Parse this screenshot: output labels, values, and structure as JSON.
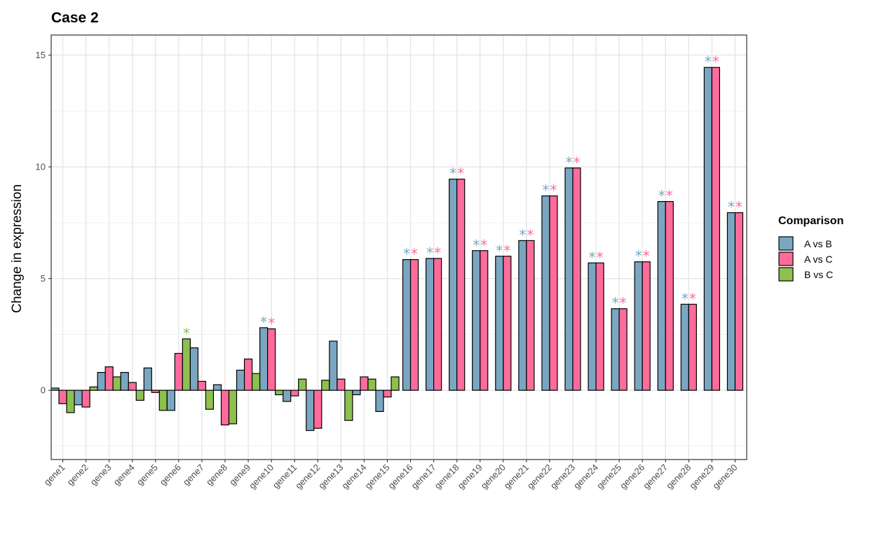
{
  "chart_data": {
    "type": "bar",
    "title": "Case 2",
    "xlabel": "",
    "ylabel": "Change in expression",
    "ylim": [
      -3.1,
      15.9
    ],
    "yticks": [
      0,
      5,
      10,
      15
    ],
    "grid": true,
    "legend_title": "Comparison",
    "legend_position": "right",
    "categories": [
      "gene1",
      "gene2",
      "gene3",
      "gene4",
      "gene5",
      "gene6",
      "gene7",
      "gene8",
      "gene9",
      "gene10",
      "gene11",
      "gene12",
      "gene13",
      "gene14",
      "gene15",
      "gene16",
      "gene17",
      "gene18",
      "gene19",
      "gene20",
      "gene21",
      "gene22",
      "gene23",
      "gene24",
      "gene25",
      "gene26",
      "gene27",
      "gene28",
      "gene29",
      "gene30"
    ],
    "series": [
      {
        "name": "A vs B",
        "color": "#7AA6C2",
        "values": [
          0.1,
          -0.65,
          0.8,
          0.8,
          1.0,
          -0.9,
          1.9,
          0.25,
          0.9,
          2.8,
          -0.5,
          -1.8,
          2.2,
          -0.2,
          -0.95,
          5.85,
          5.9,
          9.45,
          6.25,
          6.0,
          6.7,
          8.7,
          9.95,
          5.7,
          3.65,
          5.75,
          8.45,
          3.85,
          14.45,
          7.95
        ],
        "significant": [
          false,
          false,
          false,
          false,
          false,
          false,
          false,
          false,
          false,
          true,
          false,
          false,
          false,
          false,
          false,
          true,
          true,
          true,
          true,
          true,
          true,
          true,
          true,
          true,
          true,
          true,
          true,
          true,
          true,
          true
        ]
      },
      {
        "name": "A vs C",
        "color": "#FF6B9A",
        "values": [
          -0.6,
          -0.75,
          1.05,
          0.35,
          -0.1,
          1.65,
          0.4,
          -1.55,
          1.4,
          2.75,
          -0.25,
          -1.7,
          0.5,
          0.6,
          -0.3,
          5.85,
          5.9,
          9.45,
          6.25,
          6.0,
          6.7,
          8.7,
          9.95,
          5.7,
          3.65,
          5.75,
          8.45,
          3.85,
          14.45,
          7.95
        ],
        "significant": [
          false,
          false,
          false,
          false,
          false,
          false,
          false,
          false,
          false,
          true,
          false,
          false,
          false,
          false,
          false,
          true,
          true,
          true,
          true,
          true,
          true,
          true,
          true,
          true,
          true,
          true,
          true,
          true,
          true,
          true
        ]
      },
      {
        "name": "B vs C",
        "color": "#8DC04F",
        "values": [
          -1.0,
          0.15,
          0.6,
          -0.45,
          -0.9,
          2.3,
          -0.85,
          -1.5,
          0.75,
          -0.2,
          0.5,
          0.45,
          -1.35,
          0.5,
          0.6,
          null,
          null,
          null,
          null,
          null,
          null,
          null,
          null,
          null,
          null,
          null,
          null,
          null,
          null,
          null
        ],
        "significant": [
          false,
          false,
          false,
          false,
          false,
          true,
          false,
          false,
          false,
          false,
          false,
          false,
          false,
          false,
          false,
          false,
          false,
          false,
          false,
          false,
          false,
          false,
          false,
          false,
          false,
          false,
          false,
          false,
          false,
          false
        ]
      }
    ],
    "annotations": {
      "significance_marker": "*"
    }
  }
}
